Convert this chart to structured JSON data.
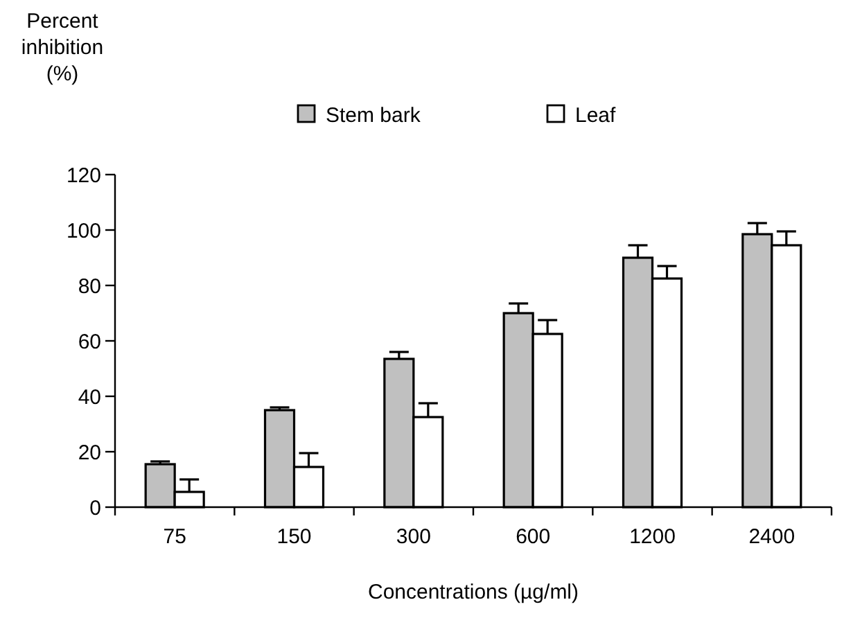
{
  "chart_data": {
    "type": "bar",
    "ylabel": "Percent\ninhibition\n(%)",
    "xlabel": "Concentrations (µg/ml)",
    "categories": [
      "75",
      "150",
      "300",
      "600",
      "1200",
      "2400"
    ],
    "series": [
      {
        "name": "Stem bark",
        "color": "#c0c0c0",
        "values": [
          15.5,
          35,
          53.5,
          70,
          90,
          98.5
        ],
        "errors": [
          [
            15.5,
            16.5
          ],
          [
            35,
            36
          ],
          [
            53.5,
            56
          ],
          [
            70,
            73.5
          ],
          [
            90,
            94.5
          ],
          [
            98.5,
            102.5
          ]
        ]
      },
      {
        "name": "Leaf",
        "color": "#ffffff",
        "values": [
          5.5,
          14.5,
          32.5,
          62.5,
          82.5,
          94.5
        ],
        "errors": [
          [
            5.5,
            10
          ],
          [
            14.5,
            19.5
          ],
          [
            32.5,
            37.5
          ],
          [
            62.5,
            67.5
          ],
          [
            82.5,
            87
          ],
          [
            94.5,
            99.5
          ]
        ]
      }
    ],
    "ylim": [
      0,
      120
    ],
    "yticks": [
      0,
      20,
      40,
      60,
      80,
      100,
      120
    ],
    "legend": "top",
    "grid": false
  }
}
